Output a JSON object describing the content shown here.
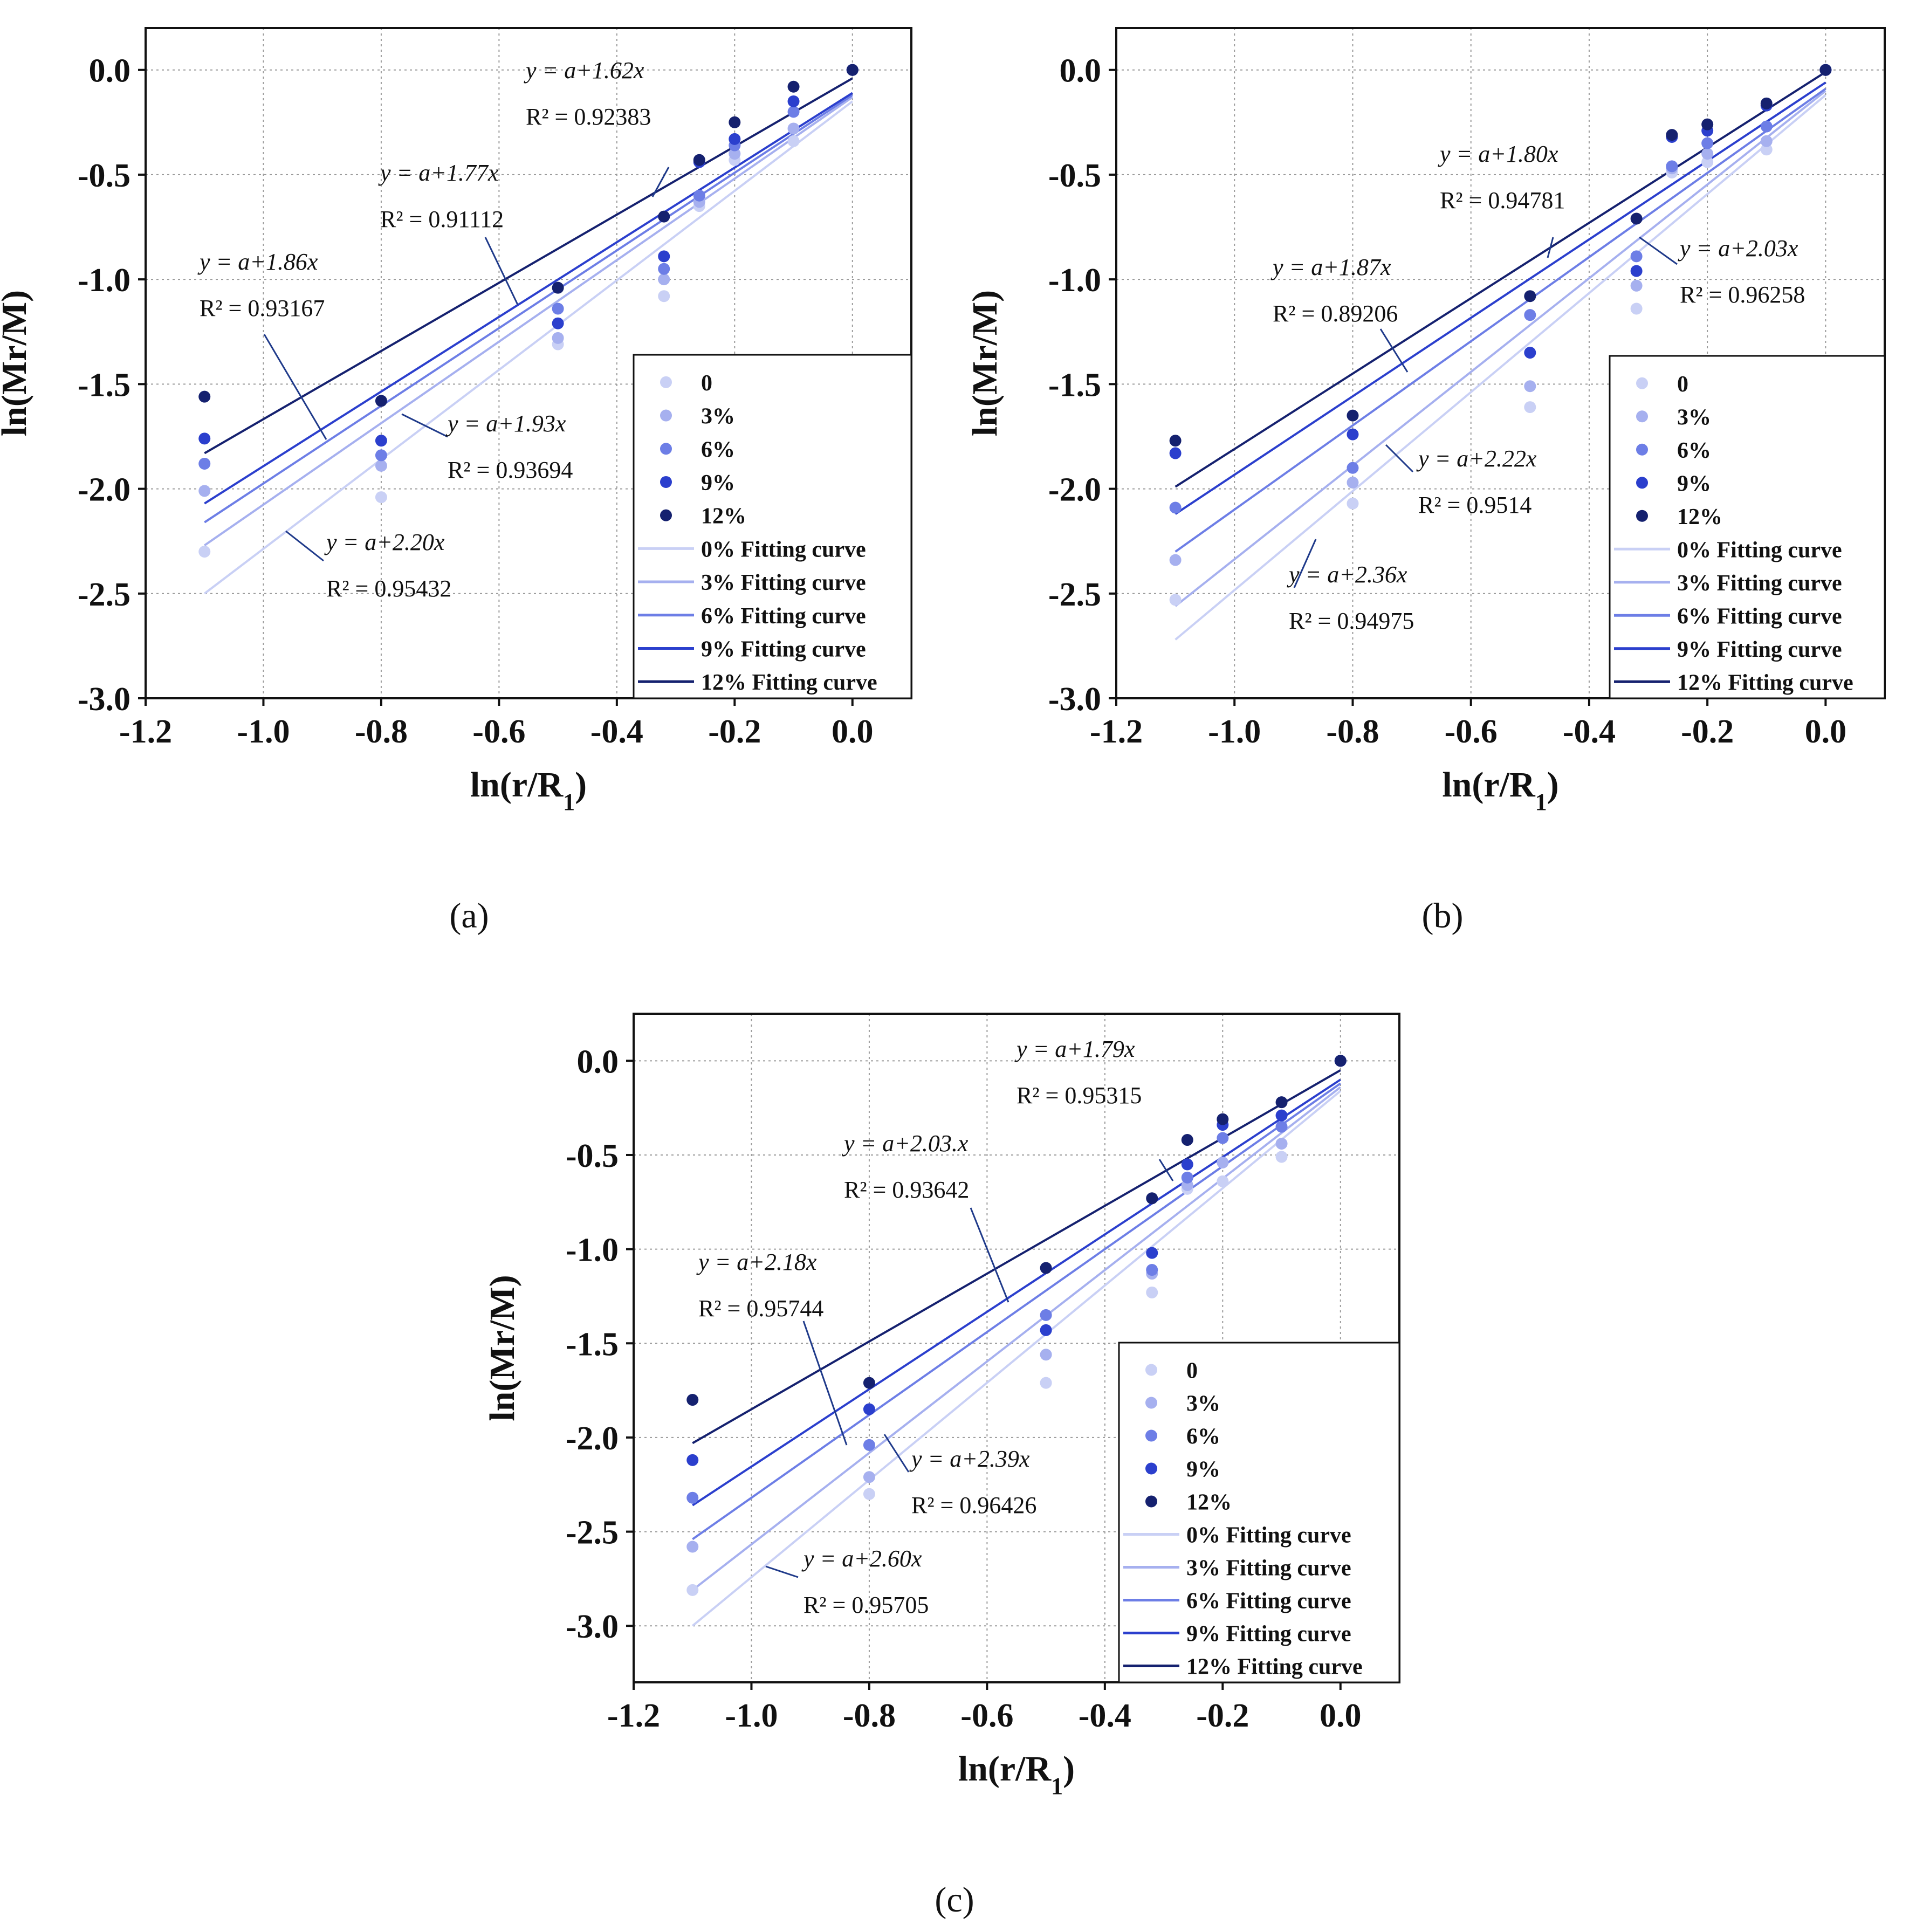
{
  "colors": [
    "#c9d0f5",
    "#a6b0ef",
    "#6d7ee6",
    "#2b3fcd",
    "#15216f"
  ],
  "legend_labels": [
    "0",
    "3%",
    "6%",
    "9%",
    "12%"
  ],
  "fit_labels": [
    "0% Fitting curve",
    "3% Fitting curve",
    "6% Fitting curve",
    "9% Fitting curve",
    "12% Fitting curve"
  ],
  "chart_data": [
    {
      "panel": "(a)",
      "type": "scatter",
      "xlabel": "ln(r/R1)",
      "ylabel": "ln(Mr/M)",
      "xlim": [
        -1.2,
        0.1
      ],
      "ylim": [
        -3.0,
        0.2
      ],
      "xticks": [
        -1.2,
        -1.0,
        -0.8,
        -0.6,
        -0.4,
        -0.2,
        0.0
      ],
      "yticks": [
        0.0,
        -0.5,
        -1.0,
        -1.5,
        -2.0,
        -2.5,
        -3.0
      ],
      "x": [
        -1.1,
        -0.8,
        -0.5,
        -0.32,
        -0.26,
        -0.2,
        -0.1,
        0.0
      ],
      "series": [
        {
          "name": "0",
          "values": [
            -2.3,
            -2.04,
            -1.31,
            -1.08,
            -0.65,
            -0.43,
            -0.34,
            0.0
          ],
          "fit": [
            [
              -1.1,
              -2.5
            ],
            [
              0.0,
              -0.15
            ]
          ]
        },
        {
          "name": "3%",
          "values": [
            -2.01,
            -1.89,
            -1.28,
            -1.0,
            -0.63,
            -0.4,
            -0.28,
            0.0
          ],
          "fit": [
            [
              -1.1,
              -2.27
            ],
            [
              0.0,
              -0.13
            ]
          ]
        },
        {
          "name": "6%",
          "values": [
            -1.88,
            -1.84,
            -1.14,
            -0.95,
            -0.6,
            -0.36,
            -0.2,
            0.0
          ],
          "fit": [
            [
              -1.1,
              -2.16
            ],
            [
              0.0,
              -0.12
            ]
          ]
        },
        {
          "name": "9%",
          "values": [
            -1.76,
            -1.77,
            -1.21,
            -0.89,
            -0.44,
            -0.33,
            -0.15,
            0.0
          ],
          "fit": [
            [
              -1.1,
              -2.07
            ],
            [
              0.0,
              -0.11
            ]
          ]
        },
        {
          "name": "12%",
          "values": [
            -1.56,
            -1.58,
            -1.04,
            -0.7,
            -0.43,
            -0.25,
            -0.08,
            0.0
          ],
          "fit": [
            [
              -1.1,
              -1.83
            ],
            [
              0.0,
              -0.04
            ]
          ]
        }
      ],
      "annotations": [
        {
          "eq": "y = a+1.62x",
          "r2": "R² = 0.92383"
        },
        {
          "eq": "y = a+1.77x",
          "r2": "R² = 0.91112"
        },
        {
          "eq": "y = a+1.86x",
          "r2": "R² = 0.93167"
        },
        {
          "eq": "y = a+1.93x",
          "r2": "R² = 0.93694"
        },
        {
          "eq": "y = a+2.20x",
          "r2": "R² = 0.95432"
        }
      ]
    },
    {
      "panel": "(b)",
      "type": "scatter",
      "xlabel": "ln(r/R1)",
      "ylabel": "ln(Mr/M)",
      "xlim": [
        -1.2,
        0.1
      ],
      "ylim": [
        -3.0,
        0.2
      ],
      "xticks": [
        -1.2,
        -1.0,
        -0.8,
        -0.6,
        -0.4,
        -0.2,
        0.0
      ],
      "yticks": [
        0.0,
        -0.5,
        -1.0,
        -1.5,
        -2.0,
        -2.5,
        -3.0
      ],
      "x": [
        -1.1,
        -0.8,
        -0.5,
        -0.32,
        -0.26,
        -0.2,
        -0.1,
        0.0
      ],
      "series": [
        {
          "name": "0",
          "values": [
            -2.53,
            -2.07,
            -1.61,
            -1.14,
            -0.49,
            -0.44,
            -0.38,
            0.0
          ],
          "fit": [
            [
              -1.1,
              -2.72
            ],
            [
              0.0,
              -0.12
            ]
          ]
        },
        {
          "name": "3%",
          "values": [
            -2.34,
            -1.97,
            -1.51,
            -1.03,
            -0.47,
            -0.4,
            -0.34,
            0.0
          ],
          "fit": [
            [
              -1.1,
              -2.56
            ],
            [
              0.0,
              -0.1
            ]
          ]
        },
        {
          "name": "6%",
          "values": [
            -2.09,
            -1.9,
            -1.17,
            -0.89,
            -0.46,
            -0.35,
            -0.27,
            0.0
          ],
          "fit": [
            [
              -1.1,
              -2.3
            ],
            [
              0.0,
              -0.09
            ]
          ]
        },
        {
          "name": "9%",
          "values": [
            -1.83,
            -1.74,
            -1.35,
            -0.96,
            -0.32,
            -0.29,
            -0.17,
            0.0
          ],
          "fit": [
            [
              -1.1,
              -2.12
            ],
            [
              0.0,
              -0.06
            ]
          ]
        },
        {
          "name": "12%",
          "values": [
            -1.77,
            -1.65,
            -1.08,
            -0.71,
            -0.31,
            -0.26,
            -0.16,
            0.0
          ],
          "fit": [
            [
              -1.1,
              -1.99
            ],
            [
              0.0,
              -0.01
            ]
          ]
        }
      ],
      "annotations": [
        {
          "eq": "y = a+1.80x",
          "r2": "R² = 0.94781"
        },
        {
          "eq": "y = a+1.87x",
          "r2": "R² = 0.89206"
        },
        {
          "eq": "y = a+2.03x",
          "r2": "R² = 0.96258"
        },
        {
          "eq": "y = a+2.22x",
          "r2": "R² = 0.9514"
        },
        {
          "eq": "y = a+2.36x",
          "r2": "R² = 0.94975"
        }
      ]
    },
    {
      "panel": "(c)",
      "type": "scatter",
      "xlabel": "ln(r/R1)",
      "ylabel": "ln(Mr/M)",
      "xlim": [
        -1.2,
        0.1
      ],
      "ylim": [
        -3.3,
        0.25
      ],
      "xticks": [
        -1.2,
        -1.0,
        -0.8,
        -0.6,
        -0.4,
        -0.2,
        0.0
      ],
      "yticks": [
        0.0,
        -0.5,
        -1.0,
        -1.5,
        -2.0,
        -2.5,
        -3.0
      ],
      "x": [
        -1.1,
        -0.8,
        -0.5,
        -0.32,
        -0.26,
        -0.2,
        -0.1,
        0.0
      ],
      "series": [
        {
          "name": "0",
          "values": [
            -2.81,
            -2.3,
            -1.71,
            -1.23,
            -0.68,
            -0.64,
            -0.51,
            0.0
          ],
          "fit": [
            [
              -1.1,
              -3.0
            ],
            [
              0.0,
              -0.16
            ]
          ]
        },
        {
          "name": "3%",
          "values": [
            -2.58,
            -2.21,
            -1.56,
            -1.13,
            -0.66,
            -0.54,
            -0.44,
            0.0
          ],
          "fit": [
            [
              -1.1,
              -2.81
            ],
            [
              0.0,
              -0.14
            ]
          ]
        },
        {
          "name": "6%",
          "values": [
            -2.32,
            -2.04,
            -1.35,
            -1.11,
            -0.62,
            -0.41,
            -0.35,
            0.0
          ],
          "fit": [
            [
              -1.1,
              -2.54
            ],
            [
              0.0,
              -0.12
            ]
          ]
        },
        {
          "name": "9%",
          "values": [
            -2.12,
            -1.85,
            -1.43,
            -1.02,
            -0.55,
            -0.34,
            -0.29,
            0.0
          ],
          "fit": [
            [
              -1.1,
              -2.36
            ],
            [
              0.0,
              -0.1
            ]
          ]
        },
        {
          "name": "12%",
          "values": [
            -1.8,
            -1.71,
            -1.1,
            -0.73,
            -0.42,
            -0.31,
            -0.22,
            0.0
          ],
          "fit": [
            [
              -1.1,
              -2.03
            ],
            [
              0.0,
              -0.05
            ]
          ]
        }
      ],
      "annotations": [
        {
          "eq": "y = a+1.79x",
          "r2": "R² = 0.95315"
        },
        {
          "eq": "y = a+2.03.x",
          "r2": "R² = 0.93642"
        },
        {
          "eq": "y = a+2.18x",
          "r2": "R² = 0.95744"
        },
        {
          "eq": "y = a+2.39x",
          "r2": "R² = 0.96426"
        },
        {
          "eq": "y = a+2.60x",
          "r2": "R² = 0.95705"
        }
      ]
    }
  ]
}
